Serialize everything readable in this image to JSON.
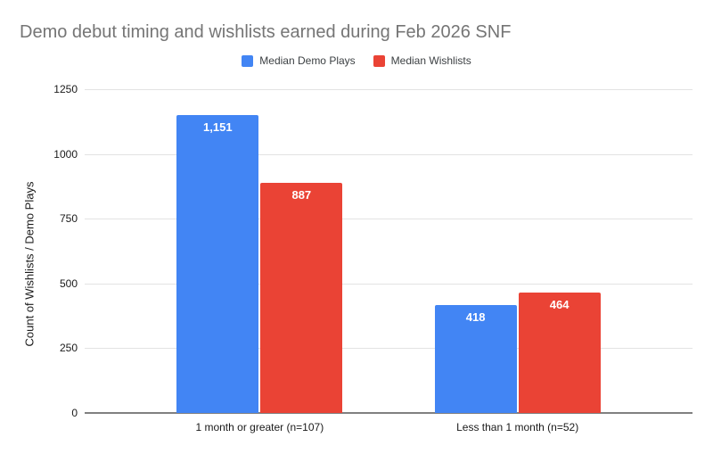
{
  "title": "Demo debut timing and wishlists earned during Feb 2026 SNF",
  "legend": {
    "items": [
      {
        "label": "Median Demo Plays",
        "color": "#4285F4"
      },
      {
        "label": "Median Wishlists",
        "color": "#EA4335"
      }
    ]
  },
  "chart_data": {
    "type": "bar",
    "title": "Demo debut timing and wishlists earned during Feb 2026 SNF",
    "categories": [
      "1 month or greater (n=107)",
      "Less than 1 month (n=52)"
    ],
    "series": [
      {
        "name": "Median Demo Plays",
        "color": "#4285F4",
        "values": [
          1151,
          418
        ],
        "value_labels": [
          "1,151",
          "418"
        ]
      },
      {
        "name": "Median Wishlists",
        "color": "#EA4335",
        "values": [
          887,
          464
        ],
        "value_labels": [
          "887",
          "464"
        ]
      }
    ],
    "xlabel": "",
    "ylabel": "Count of Wishlists / Demo Plays",
    "ylim": [
      0,
      1250
    ],
    "yticks": [
      0,
      250,
      500,
      750,
      1000,
      1250
    ],
    "grid": true,
    "legend_position": "top",
    "colors": {
      "grid_line": "#e3e3e3",
      "baseline": "#808080",
      "tick_text": "#1a1a1a",
      "title_text": "#757575",
      "value_label_text": "#ffffff",
      "background": "#ffffff"
    }
  }
}
